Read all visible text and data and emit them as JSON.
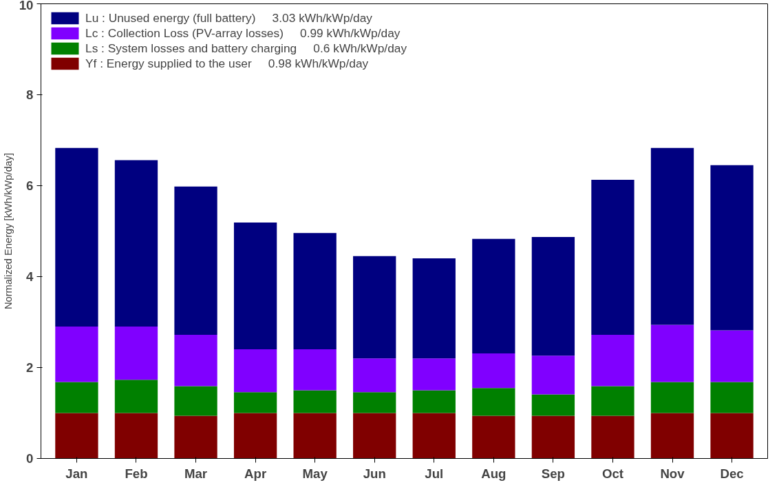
{
  "chart_data": {
    "type": "bar",
    "stacked": true,
    "ylabel": "Normalized Energy [kWh/kWp/day]",
    "categories": [
      "Jan",
      "Feb",
      "Mar",
      "Apr",
      "May",
      "Jun",
      "Jul",
      "Aug",
      "Sep",
      "Oct",
      "Nov",
      "Dec"
    ],
    "series": [
      {
        "name": "Yf : Energy supplied to the user     0.98 kWh/kWp/day",
        "color": "#800000",
        "values": [
          1.0,
          1.0,
          0.94,
          1.0,
          1.0,
          1.0,
          1.0,
          0.94,
          0.94,
          0.94,
          1.0,
          1.0
        ]
      },
      {
        "name": "Ls : System losses and battery charging     0.6 kWh/kWp/day",
        "color": "#008000",
        "values": [
          0.68,
          0.73,
          0.65,
          0.46,
          0.5,
          0.46,
          0.5,
          0.61,
          0.47,
          0.65,
          0.68,
          0.68
        ]
      },
      {
        "name": "Lc : Collection Loss (PV-array losses)     0.99 kWh/kWp/day",
        "color": "#8000ff",
        "values": [
          1.22,
          1.17,
          1.13,
          0.94,
          0.9,
          0.74,
          0.7,
          0.76,
          0.85,
          1.13,
          1.26,
          1.14
        ]
      },
      {
        "name": "Lu : Unused energy (full battery)     3.03 kWh/kWp/day",
        "color": "#000080",
        "values": [
          3.93,
          3.66,
          3.26,
          2.79,
          2.56,
          2.25,
          2.2,
          2.52,
          2.61,
          3.41,
          3.89,
          3.63
        ]
      }
    ],
    "ylim": [
      0,
      10
    ],
    "yticks": [
      0,
      2,
      4,
      6,
      8,
      10
    ],
    "grid": false,
    "legend": "top left"
  }
}
